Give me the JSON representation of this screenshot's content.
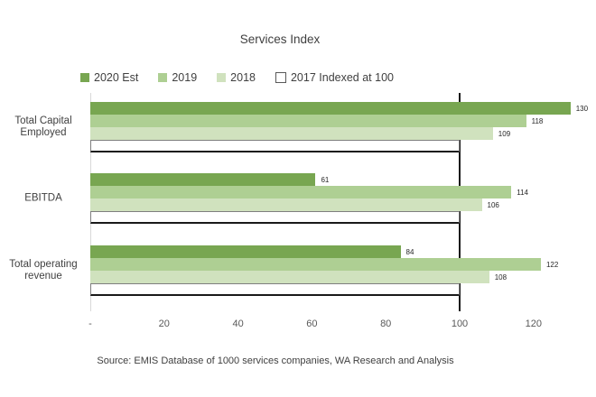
{
  "title": "Services Index",
  "source": "Source: EMIS Database of 1000 services companies, WA Research and Analysis",
  "colors": {
    "series_2020": "#78A651",
    "series_2019": "#AECF93",
    "series_2018": "#D0E2BE",
    "series_2017_fill": "#FFFFFF",
    "series_2017_border": "#7f7f7f",
    "reference_line": "#1a1a1a",
    "axis_line": "#d9d9d9",
    "text": "#404040"
  },
  "legend": [
    {
      "label": "2020 Est",
      "color": "#78A651",
      "outlined": false
    },
    {
      "label": "2019",
      "color": "#AECF93",
      "outlined": false
    },
    {
      "label": "2018",
      "color": "#D0E2BE",
      "outlined": false
    },
    {
      "label": "2017 Indexed at 100",
      "color": "#FFFFFF",
      "outlined": true
    }
  ],
  "chart_data": {
    "type": "bar",
    "orientation": "horizontal",
    "title": "Services Index",
    "categories": [
      "Total Capital\nEmployed",
      "EBITDA",
      "Total operating\nrevenue"
    ],
    "series": [
      {
        "name": "2020 Est",
        "color": "#78A651",
        "outlined": false,
        "show_labels": true,
        "values": [
          130,
          61,
          84
        ]
      },
      {
        "name": "2019",
        "color": "#AECF93",
        "outlined": false,
        "show_labels": true,
        "values": [
          118,
          114,
          122
        ]
      },
      {
        "name": "2018",
        "color": "#D0E2BE",
        "outlined": false,
        "show_labels": true,
        "values": [
          109,
          106,
          108
        ]
      },
      {
        "name": "2017 Indexed at 100",
        "color": "#FFFFFF",
        "outlined": true,
        "show_labels": false,
        "values": [
          100,
          100,
          100
        ]
      }
    ],
    "x_ticks": [
      "-",
      "20",
      "40",
      "60",
      "80",
      "100",
      "120"
    ],
    "x_tick_values": [
      0,
      20,
      40,
      60,
      80,
      100,
      120
    ],
    "xlim": [
      0,
      137
    ],
    "reference_line_x": 100,
    "grid": false,
    "legend_position": "top",
    "xlabel": "",
    "ylabel": ""
  }
}
